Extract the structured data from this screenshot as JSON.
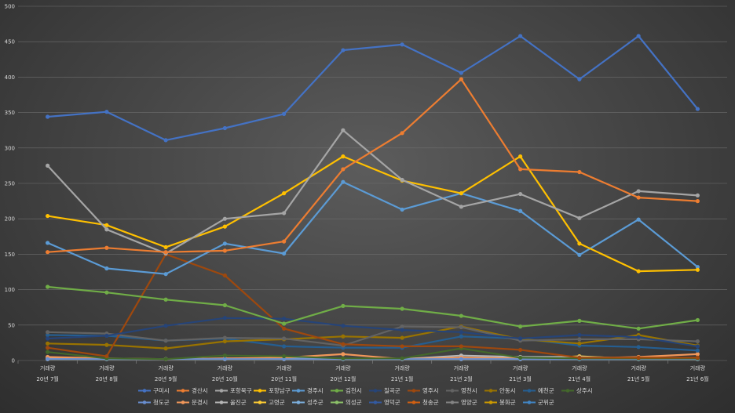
{
  "chart_data": {
    "type": "line",
    "title": "",
    "xlabel": "",
    "ylabel": "",
    "ylim": [
      0,
      500
    ],
    "yticks": [
      0,
      50,
      100,
      150,
      200,
      250,
      300,
      350,
      400,
      450,
      500
    ],
    "grid": true,
    "legend_position": "bottom",
    "categories": [
      {
        "top": "거래량",
        "bottom": "20년 7월"
      },
      {
        "top": "거래량",
        "bottom": "20년 8월"
      },
      {
        "top": "거래량",
        "bottom": "20년 9월"
      },
      {
        "top": "거래량",
        "bottom": "20년 10월"
      },
      {
        "top": "거래량",
        "bottom": "20년 11월"
      },
      {
        "top": "거래량",
        "bottom": "20년 12월"
      },
      {
        "top": "거래량",
        "bottom": "21년 1월"
      },
      {
        "top": "거래량",
        "bottom": "21년 2월"
      },
      {
        "top": "거래량",
        "bottom": "21년 3월"
      },
      {
        "top": "거래량",
        "bottom": "21년 4월"
      },
      {
        "top": "거래량",
        "bottom": "21년 5월"
      },
      {
        "top": "거래량",
        "bottom": "21년 6월"
      }
    ],
    "series": [
      {
        "name": "구미시",
        "color": "#4472c4",
        "values": [
          344,
          351,
          311,
          328,
          348,
          438,
          446,
          406,
          458,
          397,
          458,
          355
        ]
      },
      {
        "name": "경산시",
        "color": "#ed7d31",
        "values": [
          153,
          159,
          153,
          155,
          168,
          270,
          321,
          397,
          270,
          266,
          230,
          225
        ]
      },
      {
        "name": "포항북구",
        "color": "#a5a5a5",
        "values": [
          275,
          185,
          151,
          200,
          208,
          325,
          255,
          217,
          235,
          201,
          239,
          233
        ]
      },
      {
        "name": "포항남구",
        "color": "#ffc000",
        "values": [
          204,
          191,
          160,
          189,
          236,
          288,
          254,
          236,
          288,
          165,
          126,
          128
        ]
      },
      {
        "name": "경주시",
        "color": "#5b9bd5",
        "values": [
          166,
          130,
          122,
          165,
          151,
          252,
          213,
          236,
          211,
          149,
          199,
          132
        ]
      },
      {
        "name": "김천시",
        "color": "#70ad47",
        "values": [
          104,
          96,
          86,
          78,
          52,
          77,
          73,
          63,
          48,
          56,
          45,
          57
        ]
      },
      {
        "name": "칠곡군",
        "color": "#264478",
        "values": [
          31,
          35,
          49,
          60,
          59,
          49,
          43,
          40,
          31,
          36,
          33,
          20
        ]
      },
      {
        "name": "영주시",
        "color": "#9e480e",
        "values": [
          18,
          6,
          150,
          120,
          45,
          23,
          20,
          20,
          15,
          4,
          4,
          4
        ]
      },
      {
        "name": "영천시",
        "color": "#636363",
        "values": [
          40,
          38,
          28,
          32,
          31,
          21,
          48,
          47,
          28,
          30,
          30,
          27
        ]
      },
      {
        "name": "안동시",
        "color": "#997300",
        "values": [
          24,
          22,
          17,
          27,
          30,
          34,
          32,
          48,
          30,
          24,
          36,
          21
        ]
      },
      {
        "name": "예천군",
        "color": "#255e91",
        "values": [
          36,
          35,
          28,
          31,
          20,
          18,
          18,
          34,
          31,
          21,
          19,
          14
        ]
      },
      {
        "name": "상주시",
        "color": "#43682b",
        "values": [
          12,
          3,
          2,
          7,
          6,
          3,
          3,
          17,
          4,
          3,
          3,
          3
        ]
      },
      {
        "name": "청도군",
        "color": "#698ed0",
        "values": [
          2,
          2,
          2,
          2,
          2,
          2,
          2,
          2,
          2,
          2,
          2,
          2
        ]
      },
      {
        "name": "문경시",
        "color": "#f1975a",
        "values": [
          5,
          3,
          2,
          3,
          4,
          9,
          2,
          4,
          3,
          3,
          5,
          9
        ]
      },
      {
        "name": "울진군",
        "color": "#b7b7b7",
        "values": [
          3,
          2,
          2,
          3,
          2,
          2,
          2,
          7,
          5,
          5,
          3,
          3
        ]
      },
      {
        "name": "고령군",
        "color": "#ffcd33",
        "values": [
          2,
          2,
          2,
          2,
          2,
          2,
          2,
          2,
          2,
          6,
          2,
          2
        ]
      },
      {
        "name": "성주군",
        "color": "#7cafdd",
        "values": [
          2,
          2,
          2,
          2,
          3,
          2,
          2,
          2,
          2,
          2,
          2,
          2
        ]
      },
      {
        "name": "의성군",
        "color": "#8cc168",
        "values": [
          2,
          2,
          2,
          2,
          2,
          2,
          2,
          2,
          2,
          2,
          2,
          2
        ]
      },
      {
        "name": "영덕군",
        "color": "#335aa1",
        "values": [
          2,
          2,
          2,
          2,
          2,
          2,
          2,
          2,
          2,
          2,
          2,
          2
        ]
      },
      {
        "name": "청송군",
        "color": "#d26012",
        "values": [
          2,
          2,
          2,
          2,
          2,
          2,
          2,
          2,
          2,
          2,
          2,
          2
        ]
      },
      {
        "name": "영양군",
        "color": "#848484",
        "values": [
          2,
          2,
          2,
          2,
          2,
          2,
          2,
          2,
          2,
          2,
          2,
          2
        ]
      },
      {
        "name": "봉화군",
        "color": "#cc9a00",
        "values": [
          2,
          2,
          2,
          2,
          2,
          2,
          2,
          2,
          2,
          2,
          2,
          2
        ]
      },
      {
        "name": "군위군",
        "color": "#4185c4",
        "values": [
          2,
          2,
          2,
          2,
          2,
          2,
          2,
          2,
          2,
          2,
          2,
          2
        ]
      }
    ]
  }
}
